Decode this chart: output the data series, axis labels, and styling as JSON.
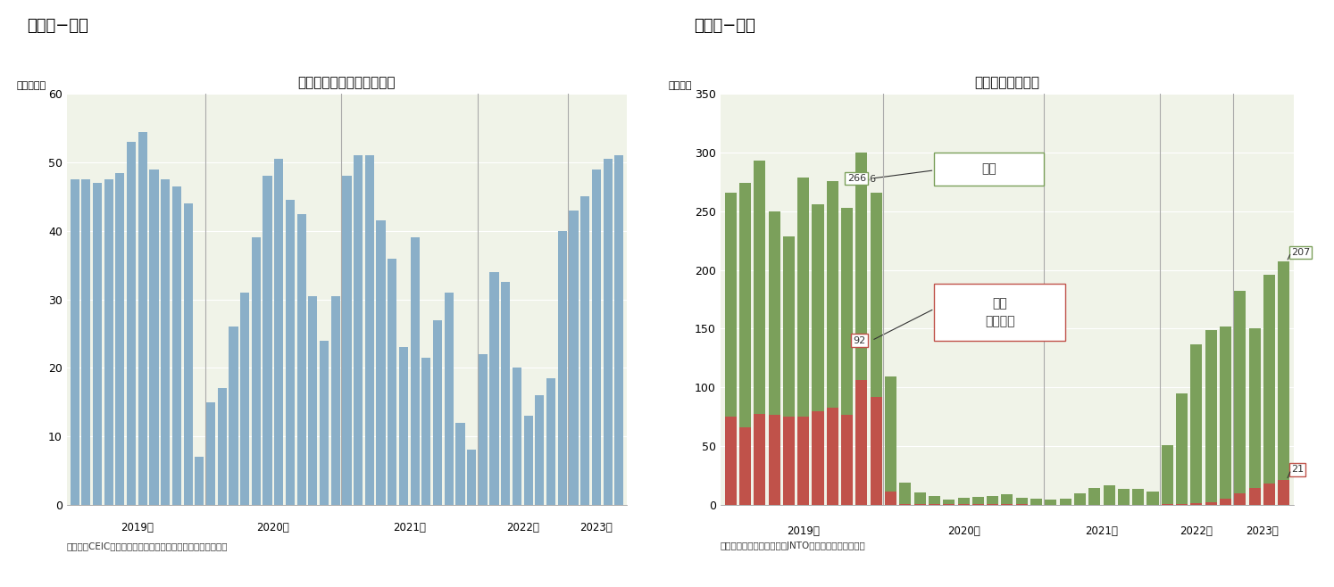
{
  "chart1_title": "中国の国内航空旅客の推移",
  "chart1_ylabel": "（百万人）",
  "chart1_source": "（資料）CEIC（出所は中国民用航空局）のデータを元に作成",
  "chart1_ylim": [
    0,
    60
  ],
  "chart1_yticks": [
    0,
    10,
    20,
    30,
    40,
    50,
    60
  ],
  "chart1_data": [
    47.5,
    47.5,
    47.0,
    47.5,
    48.5,
    53.0,
    54.5,
    49.0,
    47.5,
    46.5,
    44.0,
    7.0,
    15.0,
    17.0,
    26.0,
    31.0,
    39.0,
    48.0,
    50.5,
    44.5,
    42.5,
    30.5,
    24.0,
    30.5,
    48.0,
    51.0,
    51.0,
    41.5,
    36.0,
    23.0,
    39.0,
    21.5,
    27.0,
    31.0,
    12.0,
    8.0,
    22.0,
    34.0,
    32.5,
    20.0,
    13.0,
    16.0,
    18.5,
    40.0,
    43.0,
    45.0,
    49.0,
    50.5,
    51.0
  ],
  "chart1_bar_color": "#8aafc8",
  "chart1_bg_color": "#f0f3e8",
  "chart1_grid_color": "#ffffff",
  "chart1_vline_color": "#aaaaaa",
  "chart1_year_labels": [
    "2019年",
    "2020年",
    "2021年",
    "2022年",
    "2023年"
  ],
  "chart2_title": "訪日外客数の推移",
  "chart2_ylabel": "（万人）",
  "chart2_source": "（資料）日本政府観光局（JNTO）のデータを元に作成",
  "chart2_ylim": [
    0,
    350
  ],
  "chart2_yticks": [
    0,
    50,
    100,
    150,
    200,
    250,
    300,
    350
  ],
  "chart2_total": [
    266.0,
    274.0,
    293.0,
    250.0,
    229.0,
    279.0,
    256.0,
    276.0,
    253.0,
    300.0,
    266.0,
    109.0,
    19.0,
    10.5,
    7.5,
    4.5,
    6.0,
    6.5,
    7.5,
    9.0,
    6.0,
    5.0,
    4.5,
    5.0,
    10.0,
    14.0,
    17.0,
    13.5,
    13.5,
    11.0,
    51.0,
    95.0,
    137.0,
    149.0,
    152.0,
    182.0,
    150.0,
    196.0,
    207.0
  ],
  "chart2_china": [
    75.0,
    66.0,
    77.5,
    77.0,
    75.0,
    75.0,
    80.0,
    83.0,
    77.0,
    106.0,
    92.0,
    11.0,
    1.0,
    0.5,
    0.5,
    0.3,
    0.3,
    0.3,
    0.3,
    0.3,
    0.3,
    0.2,
    0.2,
    0.2,
    0.2,
    0.2,
    0.2,
    0.2,
    0.2,
    0.2,
    0.5,
    1.0,
    1.5,
    2.0,
    5.0,
    10.0,
    14.0,
    18.0,
    21.0
  ],
  "chart2_total_color": "#7ba05b",
  "chart2_china_color": "#c0524a",
  "chart2_bg_color": "#f0f3e8",
  "chart2_vline_color": "#aaaaaa",
  "chart2_year_labels": [
    "2019年",
    "2020年",
    "2021年",
    "2022年",
    "2023年"
  ],
  "label1_header": "（図表−１）",
  "label2_header": "（図表−２）"
}
